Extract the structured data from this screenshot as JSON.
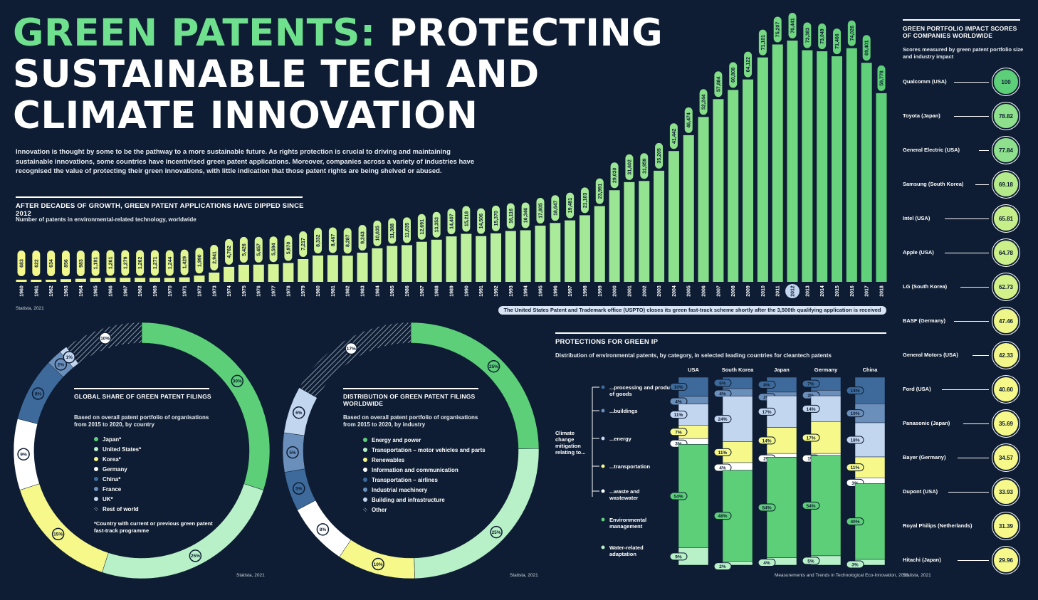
{
  "title": {
    "green": "GREEN PATENTS:",
    "line1_rest": "PROTECTING",
    "line2": "SUSTAINABLE TECH AND",
    "line3": "CLIMATE INNOVATION"
  },
  "intro": "Innovation is thought by some to be the pathway to a more sustainable future. As rights protection is crucial to driving and maintaining sustainable innovations, some countries have incentivised green patent applications. Moreover, companies across a variety of industries have recognised the value of protecting their green innovations, with little indication that those patent rights are being shelved or abused.",
  "colors": {
    "bg": "#0e1d33",
    "green": "#5ccf78",
    "lightgreen": "#b8f0c8",
    "yellow": "#f6f88a",
    "white": "#ffffff",
    "blue": "#3d6a9a",
    "lightblue": "#c3d6f0",
    "midblue": "#6b8fbb"
  },
  "timeline": {
    "title": "AFTER DECADES OF GROWTH, GREEN PATENT APPLICATIONS HAVE DIPPED SINCE 2012",
    "subtitle": "Number of patents in environmental-related technology, worldwide",
    "source": "Statista, 2021",
    "note": "The United States Patent and Trademark office (USPTO) closes its green fast-track scheme shortly after the 3,500th qualifying application is received"
  },
  "chart_data": [
    {
      "type": "bar",
      "title": "AFTER DECADES OF GROWTH, GREEN PATENT APPLICATIONS HAVE DIPPED SINCE 2012",
      "categories": [
        "1960",
        "1961",
        "1962",
        "1963",
        "1964",
        "1965",
        "1966",
        "1967",
        "1968",
        "1969",
        "1970",
        "1971",
        "1972",
        "1973",
        "1974",
        "1975",
        "1976",
        "1977",
        "1978",
        "1979",
        "1980",
        "1981",
        "1982",
        "1983",
        "1984",
        "1985",
        "1986",
        "1987",
        "1988",
        "1989",
        "1990",
        "1991",
        "1992",
        "1993",
        "1994",
        "1995",
        "1996",
        "1997",
        "1998",
        "1999",
        "2000",
        "2001",
        "2002",
        "2003",
        "2004",
        "2005",
        "2006",
        "2007",
        "2008",
        "2009",
        "2010",
        "2011",
        "2012",
        "2013",
        "2014",
        "2015",
        "2016",
        "2017",
        "2018"
      ],
      "values": [
        683,
        622,
        634,
        856,
        983,
        1191,
        1261,
        1279,
        1262,
        1271,
        1244,
        1429,
        1990,
        2941,
        4762,
        5426,
        5457,
        5594,
        5970,
        7217,
        8332,
        8467,
        8287,
        9243,
        10635,
        11388,
        11635,
        12691,
        13353,
        14407,
        15218,
        14506,
        15370,
        16116,
        16346,
        17805,
        18647,
        19481,
        21103,
        23991,
        29030,
        31602,
        31959,
        35205,
        41442,
        46474,
        52244,
        57884,
        60808,
        64122,
        71101,
        75207,
        76441,
        73383,
        73049,
        71466,
        74026,
        69401,
        59778
      ],
      "labels": [
        "683",
        "622",
        "634",
        "856",
        "983",
        "1,191",
        "1,261",
        "1,279",
        "1,262",
        "1,271",
        "1,244",
        "1,429",
        "1,990",
        "2,941",
        "4,762",
        "5,426",
        "5,457",
        "5,594",
        "5,970",
        "7,217",
        "8,332",
        "8,467",
        "8,287",
        "9,243",
        "10,635",
        "11,388",
        "11,635",
        "12,691",
        "13,353",
        "14,407",
        "15,218",
        "14,506",
        "15,370",
        "16,116",
        "16,346",
        "17,805",
        "18,647",
        "19,481",
        "21,103",
        "23,991",
        "29,030",
        "31,602",
        "31,959",
        "35,205",
        "41,442",
        "46,474",
        "52,244",
        "57,884",
        "60,808",
        "64,122",
        "71,101",
        "75,207",
        "76,441",
        "73,383",
        "73,049",
        "71,466",
        "74,026",
        "69,401",
        "59,778"
      ],
      "highlight": "2012",
      "ylim": [
        0,
        80000
      ]
    },
    {
      "type": "pie",
      "title": "GLOBAL SHARE OF GREEN PATENT FILINGS",
      "subtitle": "Based on overall patent portfolio of organisations from 2015 to 2020, by country",
      "labels": [
        "Japan*",
        "United States*",
        "Korea*",
        "Germany",
        "China*",
        "France",
        "UK*",
        "Rest of world"
      ],
      "values": [
        30,
        25,
        15,
        9,
        8,
        2,
        1,
        10
      ],
      "value_labels": [
        "30%",
        "25%",
        "15%",
        "9%",
        "8%",
        "2%",
        "1%",
        "10%"
      ],
      "colors": [
        "#5ccf78",
        "#b8f0c8",
        "#f6f88a",
        "#ffffff",
        "#3d6a9a",
        "#6b8fbb",
        "#c3d6f0",
        "hatch"
      ],
      "note": "*Country with current or previous green patent fast-track programme",
      "source": "Statista, 2021"
    },
    {
      "type": "pie",
      "title": "DISTRIBUTION OF GREEN PATENT FILINGS WORLDWIDE",
      "subtitle": "Based on overall patent portfolio of organisations from 2015 to 2020, by industry",
      "labels": [
        "Energy and power",
        "Transportation – motor vehicles and parts",
        "Renewables",
        "Information and communication",
        "Transportation – airlines",
        "Industrial machinery",
        "Building and infrastructure",
        "Other"
      ],
      "values": [
        25,
        25,
        10,
        8,
        5,
        5,
        6,
        17
      ],
      "value_labels": [
        "25%",
        "25%",
        "10%",
        "8%",
        "5%",
        "5%",
        "6%",
        "17%"
      ],
      "colors": [
        "#5ccf78",
        "#b8f0c8",
        "#f6f88a",
        "#ffffff",
        "#3d6a9a",
        "#6b8fbb",
        "#c3d6f0",
        "hatch"
      ],
      "source": "Statista, 2021"
    },
    {
      "type": "bar",
      "stacked": true,
      "title": "PROTECTIONS FOR GREEN IP",
      "subtitle": "Distribution of environmental patents, by category, in selected leading countries for cleantech patents",
      "categories": [
        "USA",
        "South Korea",
        "Japan",
        "Germany",
        "China"
      ],
      "series": [
        {
          "name": "...processing and production of goods",
          "values": [
            10,
            6,
            8,
            7,
            14
          ],
          "labels": [
            "10%",
            "6%",
            "8%",
            "7%",
            "14%"
          ],
          "color": "#3d6a9a"
        },
        {
          "name": "...buildings",
          "values": [
            4,
            4,
            2,
            3,
            10
          ],
          "labels": [
            "4%",
            "4%",
            "2%",
            "3%",
            "10%"
          ],
          "color": "#6b8fbb"
        },
        {
          "name": "...energy",
          "values": [
            11,
            24,
            17,
            14,
            18
          ],
          "labels": [
            "11%",
            "24%",
            "17%",
            "14%",
            "18%"
          ],
          "color": "#c3d6f0"
        },
        {
          "name": "...transportation",
          "values": [
            7,
            11,
            14,
            17,
            11
          ],
          "labels": [
            "7%",
            "11%",
            "14%",
            "17%",
            "11%"
          ],
          "color": "#f6f88a"
        },
        {
          "name": "...waste and wastewater",
          "values": [
            3,
            4,
            2,
            1,
            3
          ],
          "labels": [
            "3%",
            "4%",
            "2%",
            "1%",
            "3%"
          ],
          "color": "#ffffff"
        },
        {
          "name": "Environmental management",
          "values": [
            54,
            48,
            54,
            54,
            40
          ],
          "labels": [
            "54%",
            "48%",
            "54%",
            "54%",
            "40%"
          ],
          "color": "#5ccf78"
        },
        {
          "name": "Water-related adaptation",
          "values": [
            9,
            2,
            4,
            5,
            3
          ],
          "labels": [
            "9%",
            "2%",
            "4%",
            "5%",
            "3%"
          ],
          "color": "#b8f0c8"
        }
      ],
      "group_label": "Climate change mitigation relating to...",
      "source": "Measurements and Trends in Technological Eco-Innovation, 2021"
    }
  ],
  "companies": {
    "title": "GREEN PORTFOLIO IMPACT SCORES OF COMPANIES WORLDWIDE",
    "subtitle": "Scores measured by green patent portfolio size and industry impact",
    "source": "Statista, 2021",
    "items": [
      {
        "name": "Qualcomm (USA)",
        "score": "100",
        "color": "#5ccf78"
      },
      {
        "name": "Toyota (Japan)",
        "score": "78.82",
        "color": "#8ee08c"
      },
      {
        "name": "General Electric (USA)",
        "score": "77.84",
        "color": "#8ee08c"
      },
      {
        "name": "Samsung (South Korea)",
        "score": "69.18",
        "color": "#b5ea8a"
      },
      {
        "name": "Intel (USA)",
        "score": "65.81",
        "color": "#c6ee89"
      },
      {
        "name": "Apple (USA)",
        "score": "64.78",
        "color": "#cbef89"
      },
      {
        "name": "LG (South Korea)",
        "score": "62.73",
        "color": "#d3f189"
      },
      {
        "name": "BASF (Germany)",
        "score": "47.46",
        "color": "#eef68a"
      },
      {
        "name": "General Motors (USA)",
        "score": "42.33",
        "color": "#f3f78a"
      },
      {
        "name": "Ford (USA)",
        "score": "40.60",
        "color": "#f6f88a"
      },
      {
        "name": "Panasonic (Japan)",
        "score": "35.69",
        "color": "#f6f88a"
      },
      {
        "name": "Bayer (Germany)",
        "score": "34.57",
        "color": "#f6f88a"
      },
      {
        "name": "Dupont (USA)",
        "score": "33.93",
        "color": "#f6f88a"
      },
      {
        "name": "Royal Philips (Netherlands)",
        "score": "31.39",
        "color": "#f6f88a"
      },
      {
        "name": "Hitachi (Japan)",
        "score": "29.96",
        "color": "#f6f88a"
      }
    ]
  }
}
